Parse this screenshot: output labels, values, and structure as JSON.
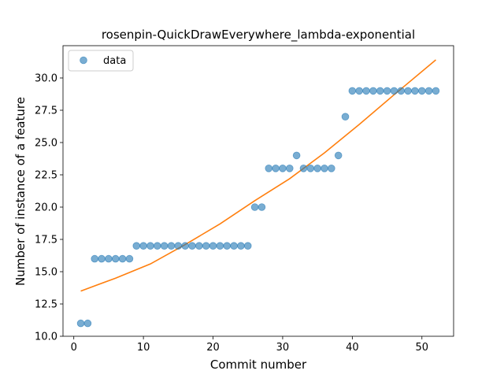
{
  "chart_data": {
    "type": "scatter",
    "title": "rosenpin-QuickDrawEverywhere_lambda-exponential",
    "xlabel": "Commit number",
    "ylabel": "Number of instance of a feature",
    "xlim": [
      -1.55,
      54.55
    ],
    "ylim": [
      10.0,
      32.5
    ],
    "x_ticks": [
      0,
      10,
      20,
      30,
      40,
      50
    ],
    "y_ticks": [
      10.0,
      12.5,
      15.0,
      17.5,
      20.0,
      22.5,
      25.0,
      27.5,
      30.0
    ],
    "x_tick_labels": [
      "0",
      "10",
      "20",
      "30",
      "40",
      "50"
    ],
    "y_tick_labels": [
      "10.0",
      "12.5",
      "15.0",
      "17.5",
      "20.0",
      "22.5",
      "25.0",
      "27.5",
      "30.0"
    ],
    "grid": false,
    "legend_position": "top-left",
    "series": [
      {
        "name": "data",
        "kind": "scatter",
        "color": "#1f77b4",
        "x": [
          1,
          2,
          3,
          4,
          5,
          6,
          7,
          8,
          9,
          10,
          11,
          12,
          13,
          14,
          15,
          16,
          17,
          18,
          19,
          20,
          21,
          22,
          23,
          24,
          25,
          26,
          27,
          28,
          29,
          30,
          31,
          32,
          33,
          34,
          35,
          36,
          37,
          38,
          39,
          40,
          41,
          42,
          43,
          44,
          45,
          46,
          47,
          48,
          49,
          50,
          51,
          52
        ],
        "y": [
          11,
          11,
          16,
          16,
          16,
          16,
          16,
          16,
          17,
          17,
          17,
          17,
          17,
          17,
          17,
          17,
          17,
          17,
          17,
          17,
          17,
          17,
          17,
          17,
          17,
          20,
          20,
          23,
          23,
          23,
          23,
          24,
          23,
          23,
          23,
          23,
          23,
          24,
          27,
          29,
          29,
          29,
          29,
          29,
          29,
          29,
          29,
          29,
          29,
          29,
          29,
          29
        ]
      },
      {
        "kind": "line",
        "color": "#ff7f0e",
        "x": [
          1,
          6,
          11,
          16,
          21,
          26,
          31,
          36,
          41,
          46,
          52
        ],
        "y": [
          13.5,
          14.5,
          15.6,
          17.1,
          18.7,
          20.5,
          22.2,
          24.2,
          26.4,
          28.7,
          31.4
        ]
      }
    ]
  }
}
